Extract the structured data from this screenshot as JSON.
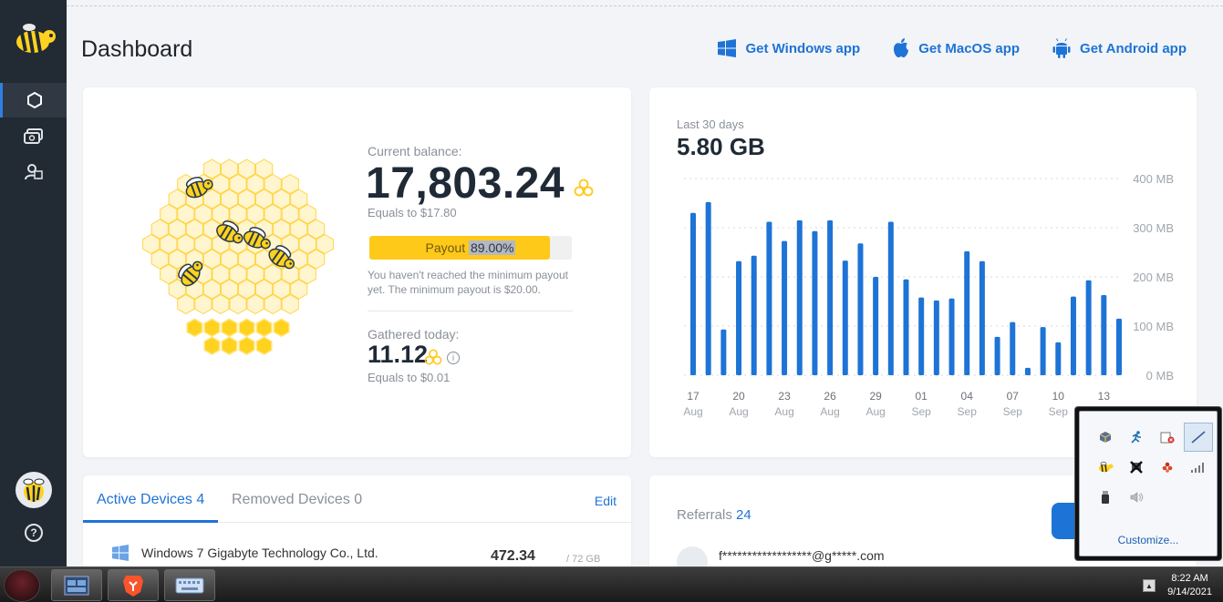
{
  "page": {
    "title": "Dashboard"
  },
  "apps": {
    "windows": "Get Windows app",
    "macos": "Get MacOS app",
    "android": "Get Android app"
  },
  "balance": {
    "label": "Current balance:",
    "value": "17,803.24",
    "equals": "Equals to $17.80",
    "payout_label": "Payout",
    "payout_percent_text": "89.00%",
    "payout_fraction": 0.89,
    "payout_note": "You haven't reached the minimum payout yet. The minimum payout is $20.00."
  },
  "gathered": {
    "label": "Gathered today:",
    "value": "11.12",
    "equals": "Equals to $0.01"
  },
  "chart_data": {
    "type": "bar",
    "label": "Last 30 days",
    "total": "5.80 GB",
    "unit": "MB",
    "ylim": [
      0,
      400
    ],
    "yticks": [
      "0 MB",
      "100 MB",
      "200 MB",
      "300 MB",
      "400 MB"
    ],
    "grid": true,
    "values": [
      330,
      352,
      93,
      232,
      243,
      312,
      273,
      315,
      293,
      315,
      233,
      268,
      200,
      312,
      195,
      158,
      152,
      156,
      252,
      232,
      78,
      108,
      15,
      98,
      67,
      160,
      193,
      163,
      115
    ],
    "x_labels": [
      {
        "index": 0,
        "day": "17",
        "month": "Aug"
      },
      {
        "index": 3,
        "day": "20",
        "month": "Aug"
      },
      {
        "index": 6,
        "day": "23",
        "month": "Aug"
      },
      {
        "index": 9,
        "day": "26",
        "month": "Aug"
      },
      {
        "index": 12,
        "day": "29",
        "month": "Aug"
      },
      {
        "index": 15,
        "day": "01",
        "month": "Sep"
      },
      {
        "index": 18,
        "day": "04",
        "month": "Sep"
      },
      {
        "index": 21,
        "day": "07",
        "month": "Sep"
      },
      {
        "index": 24,
        "day": "10",
        "month": "Sep"
      },
      {
        "index": 27,
        "day": "13",
        "month": "Sep"
      }
    ],
    "color": "#1e73d6"
  },
  "devices": {
    "tab_active": "Active Devices",
    "active_count": "4",
    "tab_removed": "Removed Devices",
    "removed_count": "0",
    "edit": "Edit",
    "first_device": {
      "name": "Windows 7 Gigabyte Technology Co., Ltd.",
      "value": "472.34",
      "sub": "/ 72 GB"
    }
  },
  "referrals": {
    "label": "Referrals",
    "count": "24",
    "first_email": "f******************@g*****.com"
  },
  "tray": {
    "customize": "Customize...",
    "icons": [
      "package-icon",
      "runner-icon",
      "update-error-icon",
      "pen-icon",
      "bee-icon",
      "network-x-icon",
      "dots-icon",
      "signal-icon",
      "usb-icon",
      "speaker-icon"
    ]
  },
  "taskbar": {
    "time": "8:22 AM",
    "date": "9/14/2021"
  }
}
